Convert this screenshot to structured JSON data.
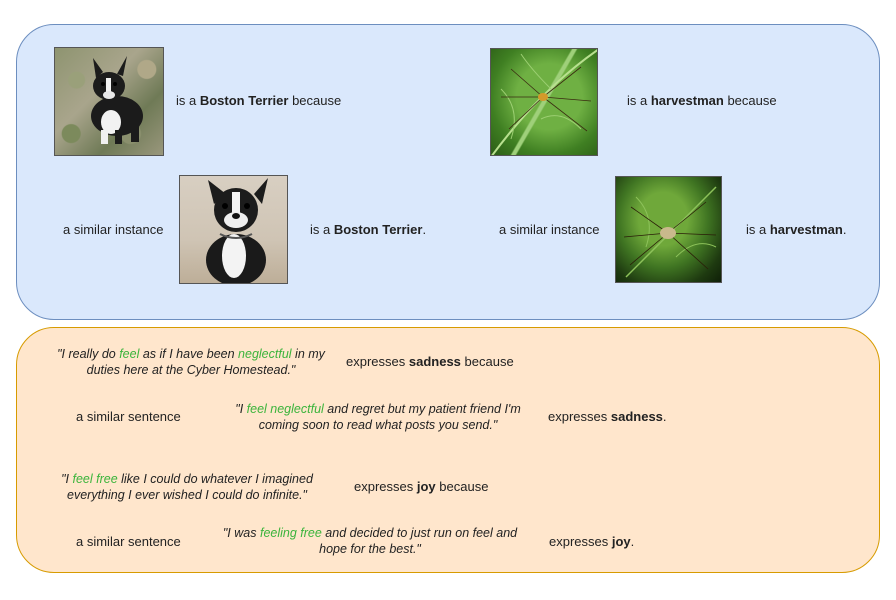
{
  "images": {
    "dog1": "boston-terrier-on-rocks",
    "leaf1": "harvestman-on-green-leaf",
    "dog2": "boston-terrier-sitting",
    "leaf2": "harvestman-on-dark-leaf"
  },
  "colors": {
    "top_panel": "#dae8fc",
    "bottom_panel": "#ffe6cc",
    "highlight": "#3cb43c"
  },
  "top": {
    "left": {
      "is_a": "is a ",
      "class": "Boston Terrier",
      "because": " because",
      "similar": "a similar instance",
      "is_a2": "is a ",
      "class2": "Boston Terrier",
      "end": "."
    },
    "right": {
      "is_a": "is a ",
      "class": "harvestman",
      "because": " because",
      "similar": "a similar instance",
      "is_a2": "is a ",
      "class2": "harvestman",
      "end": "."
    }
  },
  "bottom": {
    "group1": {
      "q1_a": "\"I really do ",
      "q1_hl1": "feel",
      "q1_b": " as if I have been ",
      "q1_hl2": "neglectful",
      "q1_c": " in my duties here at the Cyber Homestead.\"",
      "expresses": "expresses ",
      "emotion": "sadness",
      "because": " because",
      "similar": "a similar sentence",
      "q2_a": "\"I ",
      "q2_hl": "feel neglectful",
      "q2_b": " and regret but my patient friend I'm coming soon to read what posts you send.\"",
      "expresses2": "expresses ",
      "emotion2": "sadness",
      "end": "."
    },
    "group2": {
      "q1_a": "\"I ",
      "q1_hl": "feel free",
      "q1_b": " like I could do whatever I imagined everything I ever wished I could do infinite.\"",
      "expresses": "expresses ",
      "emotion": "joy",
      "because": " because",
      "similar": "a similar sentence",
      "q2_a": "\"I was ",
      "q2_hl": "feeling free",
      "q2_b": " and decided to just run on feel and hope for the best.\"",
      "expresses2": "expresses ",
      "emotion2": "joy",
      "end": "."
    }
  }
}
